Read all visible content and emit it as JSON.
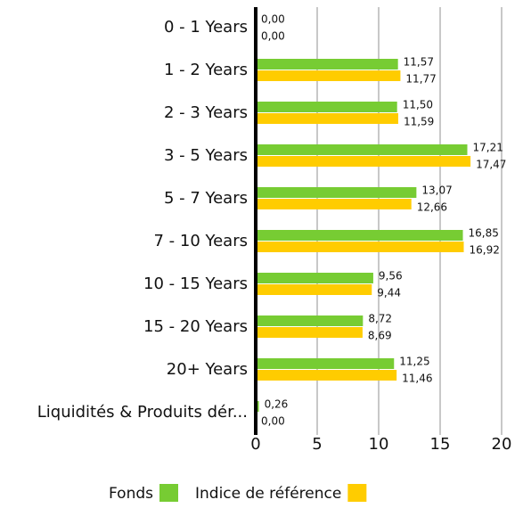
{
  "chart_data": {
    "type": "hbar",
    "categories": [
      "0 - 1 Years",
      "1 - 2 Years",
      "2 - 3 Years",
      "3 - 5 Years",
      "5 - 7 Years",
      "7 - 10 Years",
      "10 - 15 Years",
      "15 - 20 Years",
      "20+ Years",
      "Liquidités & Produits dér..."
    ],
    "series": [
      {
        "name": "Fonds",
        "color": "#77cc33",
        "values": [
          0,
          11.57,
          11.5,
          17.21,
          13.07,
          16.85,
          9.56,
          8.72,
          11.25,
          0.26
        ],
        "value_labels": [
          "0,00",
          "11,57",
          "11,50",
          "17,21",
          "13,07",
          "16,85",
          "9,56",
          "8,72",
          "11,25",
          "0,26"
        ]
      },
      {
        "name": "Indice de référence",
        "color": "#ffcc00",
        "values": [
          0,
          11.77,
          11.59,
          17.47,
          12.66,
          16.92,
          9.44,
          8.69,
          11.46,
          0
        ],
        "value_labels": [
          "0,00",
          "11,77",
          "11,59",
          "17,47",
          "12,66",
          "16,92",
          "9,44",
          "8,69",
          "11,46",
          "0,00"
        ]
      }
    ],
    "xlim": [
      0,
      20
    ],
    "xticks": [
      0,
      5,
      10,
      15,
      20
    ],
    "grid": true,
    "legend": "bottom"
  }
}
